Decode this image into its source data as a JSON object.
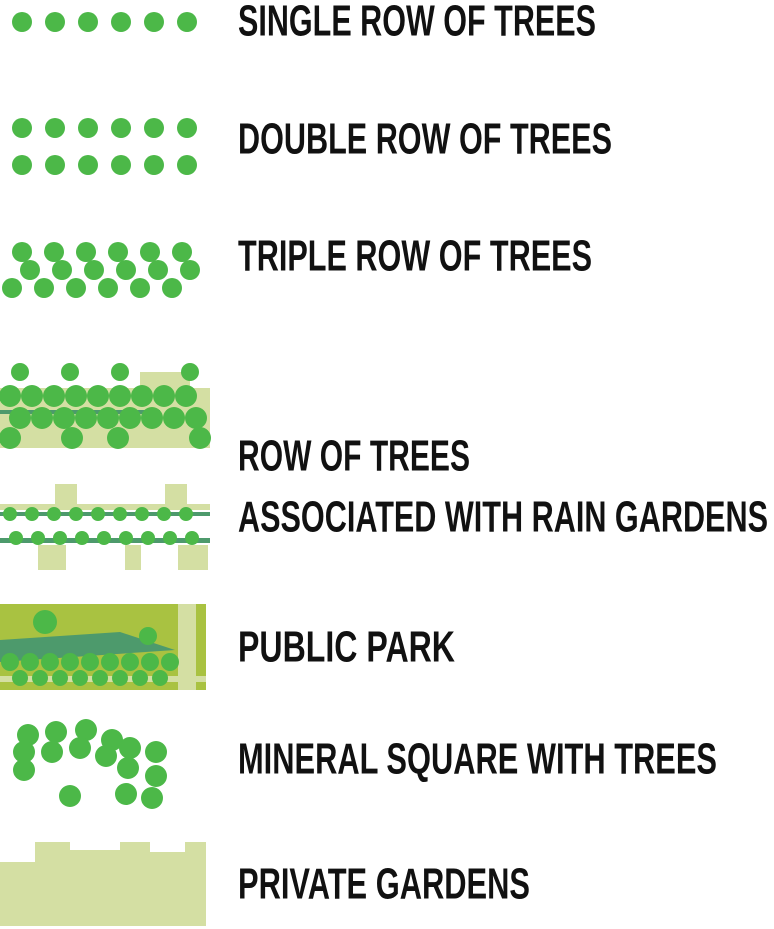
{
  "items": [
    {
      "label": "SINGLE ROW OF TREES"
    },
    {
      "label": "DOUBLE ROW OF TREES"
    },
    {
      "label": "TRIPLE ROW OF TREES"
    },
    {
      "lines": [
        "ROW OF TREES",
        "ASSOCIATED WITH RAIN GARDENS"
      ]
    },
    {
      "label": "PUBLIC PARK"
    },
    {
      "label": "MINERAL SQUARE WITH TREES"
    },
    {
      "label": "PRIVATE GARDENS"
    }
  ]
}
